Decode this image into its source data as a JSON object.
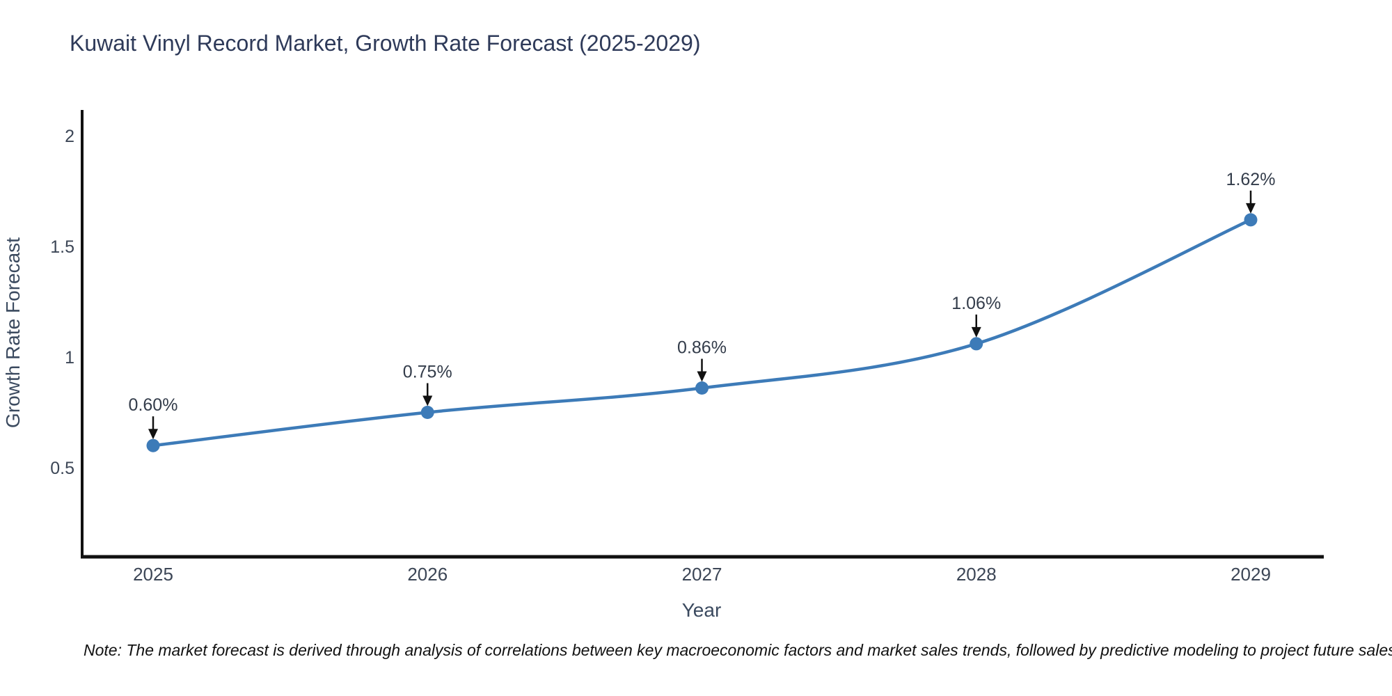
{
  "page": {
    "background": "#ffffff"
  },
  "note": "Note: The market forecast is derived through analysis of correlations between key macroeconomic factors and market sales trends, followed by predictive modeling to project future sales",
  "chart_data": {
    "type": "line",
    "title": "Kuwait Vinyl Record Market, Growth Rate Forecast (2025-2029)",
    "xlabel": "Year",
    "ylabel": "Growth Rate Forecast",
    "categories": [
      "2025",
      "2026",
      "2027",
      "2028",
      "2029"
    ],
    "values": [
      0.6,
      0.75,
      0.86,
      1.06,
      1.62
    ],
    "point_labels": [
      "0.60%",
      "0.75%",
      "0.86%",
      "1.06%",
      "1.62%"
    ],
    "ytick_labels": [
      "0.5",
      "1",
      "1.5",
      "2"
    ],
    "ytick_values": [
      0.5,
      1.0,
      1.5,
      2.0
    ],
    "ylim": [
      0.1,
      2.1
    ],
    "grid": false,
    "legend": false,
    "line_shape": "spline",
    "annotation_style": "value label with downward arrow above each point",
    "colors": {
      "line": "#3d7bb8",
      "marker": "#3d7bb8",
      "axis": "#111111",
      "title_text": "#2e3a59",
      "tick_text": "#3c4656",
      "annotation_text": "#333c4a",
      "arrow": "#111111",
      "note_text": "#111111"
    }
  }
}
